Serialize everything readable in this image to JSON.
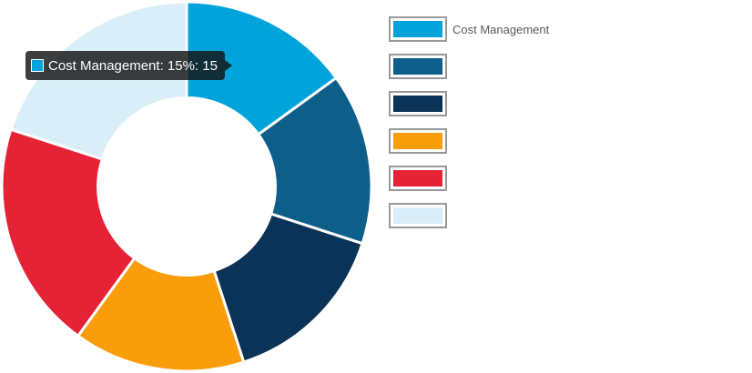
{
  "chart_data": {
    "type": "pie",
    "title": "",
    "categories": [
      "Cost Management",
      "",
      "",
      "",
      "",
      ""
    ],
    "values": [
      15,
      15,
      15,
      15,
      20,
      20
    ],
    "colors": [
      "#00a3da",
      "#0e5e8a",
      "#0a3357",
      "#f99d0a",
      "#e52236",
      "#d9eef8"
    ],
    "hole_ratio": 0.48,
    "legend_position": "right",
    "tooltip": {
      "label": "Cost Management: 15%: 15",
      "series_index": 0
    }
  }
}
